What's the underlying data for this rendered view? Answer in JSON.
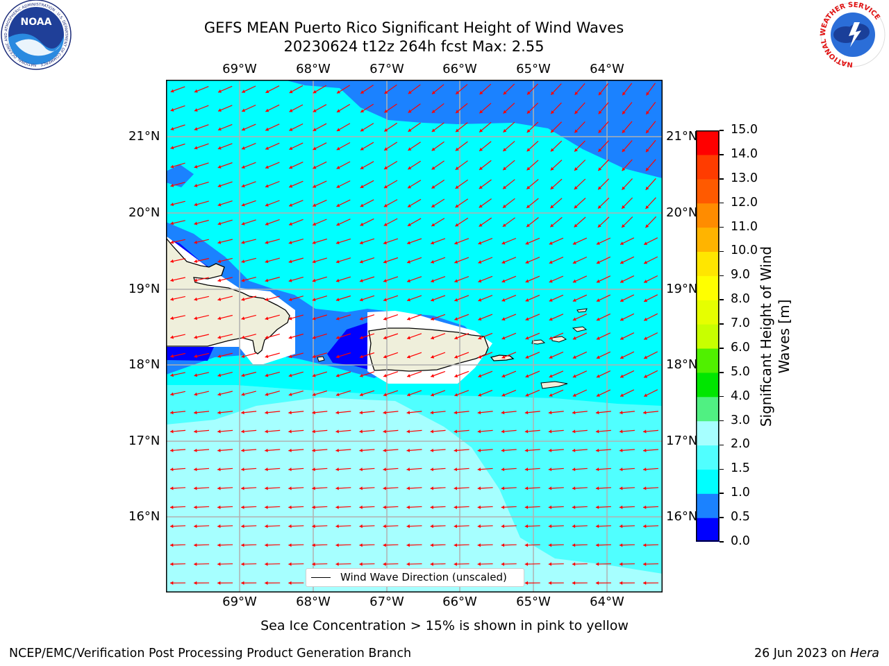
{
  "title": {
    "line1": "GEFS MEAN Puerto Rico Significant Height of Wind Waves",
    "line2": "20230624 t12z 264h fcst   Max: 2.55"
  },
  "map": {
    "lon_labels": [
      "69°W",
      "68°W",
      "67°W",
      "66°W",
      "65°W",
      "64°W"
    ],
    "lat_labels": [
      "21°N",
      "20°N",
      "19°N",
      "18°N",
      "17°N",
      "16°N"
    ],
    "lon_values": [
      -69,
      -68,
      -67,
      -66,
      -65,
      -64
    ],
    "lat_values": [
      21,
      20,
      19,
      18,
      17,
      16
    ],
    "extent": {
      "lon_min": -70,
      "lon_max": -63.25,
      "lat_min": 15,
      "lat_max": 21.75
    },
    "land_color": "#efefdb",
    "arrow_color": "#ff0000",
    "places": [
      "Hispaniola",
      "Puerto Rico",
      "Virgin Islands",
      "St. Croix"
    ]
  },
  "legend": {
    "label": "Wind Wave Direction (unscaled)"
  },
  "colorbar": {
    "label": "Significant Height of Wind Waves [m]",
    "ticks": [
      "15.0",
      "14.0",
      "13.0",
      "12.0",
      "11.0",
      "10.0",
      "9.0",
      "8.0",
      "7.0",
      "6.0",
      "5.0",
      "4.0",
      "3.0",
      "2.0",
      "1.5",
      "1.0",
      "0.5",
      "0.0"
    ],
    "levels": [
      0,
      0.5,
      1.0,
      1.5,
      2.0,
      3.0,
      4.0,
      5.0,
      6.0,
      7.0,
      8.0,
      9.0,
      10.0,
      11.0,
      12.0,
      13.0,
      14.0,
      15.0
    ],
    "colors": [
      "#0000ff",
      "#1b82ff",
      "#00ffff",
      "#50ffff",
      "#a6ffff",
      "#50f082",
      "#00e600",
      "#50f000",
      "#c8ff00",
      "#e6ff00",
      "#ffff00",
      "#ffe600",
      "#ffb400",
      "#ff8c00",
      "#ff5a00",
      "#ff3c00",
      "#ff0000"
    ]
  },
  "footnote": "Sea Ice Concentration > 15% is shown in pink to yellow",
  "credit_left": "NCEP/EMC/Verification Post Processing Product Generation Branch",
  "credit_right_prefix": "26 Jun 2023 on ",
  "credit_right_host": "Hera",
  "logos": {
    "left": {
      "name": "NOAA",
      "text": "NOAA",
      "ring_text": "NATIONAL OCEANIC AND ATMOSPHERIC ADMINISTRATION · U.S. DEPARTMENT OF COMMERCE"
    },
    "right": {
      "name": "National Weather Service",
      "ring_text": "NATIONAL WEATHER SERVICE"
    }
  }
}
